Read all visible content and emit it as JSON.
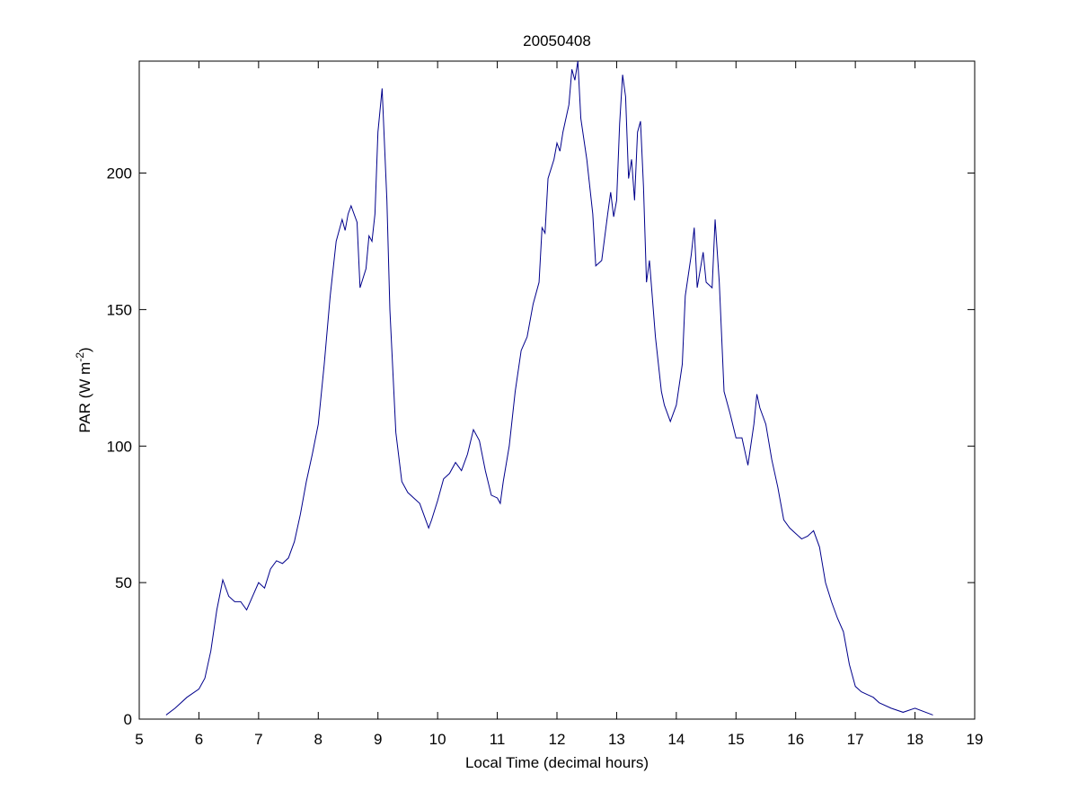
{
  "chart_data": {
    "type": "line",
    "title": "20050408",
    "xlabel": "Local Time (decimal hours)",
    "ylabel": {
      "text": "PAR (W m",
      "sup": "-2",
      "end": ")"
    },
    "xlim": [
      5,
      19
    ],
    "xticks": [
      5,
      6,
      7,
      8,
      9,
      10,
      11,
      12,
      13,
      14,
      15,
      16,
      17,
      18,
      19
    ],
    "ylim": [
      0,
      241
    ],
    "yticks": [
      0,
      50,
      100,
      150,
      200
    ],
    "grid": false,
    "series": [
      {
        "color": "#00008b",
        "x": [
          5.45,
          5.6,
          5.8,
          6.0,
          6.1,
          6.2,
          6.3,
          6.4,
          6.5,
          6.6,
          6.7,
          6.8,
          6.9,
          7.0,
          7.1,
          7.2,
          7.3,
          7.4,
          7.5,
          7.6,
          7.7,
          7.8,
          7.9,
          8.0,
          8.1,
          8.2,
          8.3,
          8.4,
          8.45,
          8.5,
          8.55,
          8.65,
          8.7,
          8.8,
          8.85,
          8.9,
          8.95,
          9.0,
          9.07,
          9.15,
          9.2,
          9.3,
          9.4,
          9.5,
          9.6,
          9.7,
          9.8,
          9.85,
          9.9,
          10.0,
          10.1,
          10.2,
          10.3,
          10.4,
          10.5,
          10.6,
          10.7,
          10.8,
          10.9,
          11.0,
          11.05,
          11.1,
          11.2,
          11.3,
          11.4,
          11.5,
          11.6,
          11.7,
          11.75,
          11.8,
          11.85,
          11.95,
          12.0,
          12.05,
          12.1,
          12.2,
          12.25,
          12.3,
          12.35,
          12.4,
          12.5,
          12.6,
          12.65,
          12.75,
          12.85,
          12.9,
          12.95,
          13.0,
          13.05,
          13.1,
          13.15,
          13.2,
          13.25,
          13.3,
          13.35,
          13.4,
          13.45,
          13.5,
          13.55,
          13.65,
          13.75,
          13.8,
          13.9,
          14.0,
          14.1,
          14.15,
          14.25,
          14.3,
          14.35,
          14.45,
          14.5,
          14.6,
          14.65,
          14.72,
          14.8,
          14.9,
          15.0,
          15.1,
          15.2,
          15.3,
          15.35,
          15.4,
          15.5,
          15.6,
          15.7,
          15.8,
          15.9,
          16.0,
          16.1,
          16.2,
          16.3,
          16.4,
          16.5,
          16.6,
          16.7,
          16.8,
          16.9,
          17.0,
          17.1,
          17.2,
          17.3,
          17.4,
          17.6,
          17.8,
          18.0,
          18.3
        ],
        "values": [
          1.5,
          4,
          8,
          11,
          15,
          25,
          40,
          51,
          45,
          43,
          43,
          40,
          45,
          50,
          48,
          55,
          58,
          57,
          59,
          65,
          75,
          87,
          97,
          108,
          130,
          155,
          175,
          183,
          179,
          185,
          188,
          182,
          158,
          165,
          177,
          175,
          185,
          215,
          231,
          190,
          150,
          105,
          87,
          83,
          81,
          79,
          73,
          70,
          73,
          80,
          88,
          90,
          94,
          91,
          97,
          106,
          102,
          91,
          82,
          81,
          79,
          87,
          100,
          120,
          135,
          140,
          152,
          160,
          180,
          178,
          198,
          205,
          211,
          208,
          215,
          225,
          238,
          234,
          241,
          220,
          205,
          185,
          166,
          168,
          185,
          193,
          184,
          190,
          218,
          236,
          228,
          198,
          205,
          190,
          215,
          219,
          195,
          160,
          168,
          140,
          120,
          115,
          109,
          115,
          130,
          155,
          170,
          180,
          158,
          171,
          160,
          158,
          183,
          160,
          120,
          112,
          103,
          103,
          93,
          108,
          119,
          114,
          108,
          95,
          85,
          73,
          70,
          68,
          66,
          67,
          69,
          63,
          50,
          43,
          37,
          32,
          20,
          12,
          10,
          9,
          8,
          6,
          4,
          2.5,
          4,
          1.5
        ]
      }
    ]
  }
}
